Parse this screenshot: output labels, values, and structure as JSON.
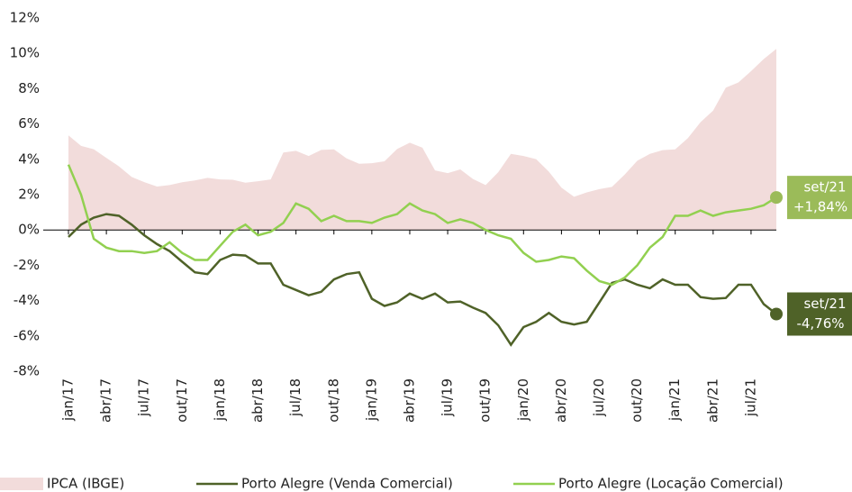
{
  "chart_data": {
    "type": "line",
    "categories": [
      "jan/17",
      null,
      null,
      "abr/17",
      null,
      null,
      "jul/17",
      null,
      null,
      "out/17",
      null,
      null,
      "jan/18",
      null,
      null,
      "abr/18",
      null,
      null,
      "jul/18",
      null,
      null,
      "out/18",
      null,
      null,
      "jan/19",
      null,
      null,
      "abr/19",
      null,
      null,
      "jul/19",
      null,
      null,
      "out/19",
      null,
      null,
      "jan/20",
      null,
      null,
      "abr/20",
      null,
      null,
      "jul/20",
      null,
      null,
      "out/20",
      null,
      null,
      "jan/21",
      null,
      null,
      "abr/21",
      null,
      null,
      "jul/21",
      null,
      null
    ],
    "series": [
      {
        "name": "IPCA (IBGE)",
        "kind": "area",
        "color": "#f2dcdb",
        "values": [
          5.35,
          4.76,
          4.57,
          4.08,
          3.6,
          3.0,
          2.71,
          2.46,
          2.54,
          2.7,
          2.8,
          2.95,
          2.86,
          2.84,
          2.68,
          2.76,
          2.86,
          4.39,
          4.48,
          4.19,
          4.53,
          4.56,
          4.05,
          3.75,
          3.78,
          3.89,
          4.58,
          4.94,
          4.66,
          3.37,
          3.22,
          3.43,
          2.89,
          2.54,
          3.27,
          4.31,
          4.19,
          4.01,
          3.3,
          2.4,
          1.88,
          2.13,
          2.31,
          2.44,
          3.14,
          3.92,
          4.31,
          4.52,
          4.56,
          5.2,
          6.1,
          6.76,
          8.06,
          8.35,
          8.99,
          9.68,
          10.25
        ]
      },
      {
        "name": "Porto Alegre (Venda Comercial)",
        "kind": "line",
        "color": "#4f6228",
        "values": [
          -0.4,
          0.3,
          0.7,
          0.9,
          0.8,
          0.3,
          -0.3,
          -0.8,
          -1.2,
          -1.8,
          -2.4,
          -2.5,
          -1.7,
          -1.4,
          -1.45,
          -1.9,
          -1.9,
          -3.1,
          -3.4,
          -3.7,
          -3.5,
          -2.8,
          -2.5,
          -2.4,
          -3.9,
          -4.3,
          -4.1,
          -3.6,
          -3.9,
          -3.6,
          -4.1,
          -4.05,
          -4.4,
          -4.7,
          -5.4,
          -6.5,
          -5.5,
          -5.2,
          -4.7,
          -5.2,
          -5.35,
          -5.2,
          -4.1,
          -3.0,
          -2.8,
          -3.1,
          -3.3,
          -2.8,
          -3.1,
          -3.1,
          -3.8,
          -3.9,
          -3.85,
          -3.1,
          -3.1,
          -4.2,
          -4.76
        ]
      },
      {
        "name": "Porto Alegre (Locação Comercial)",
        "kind": "line",
        "color": "#92d050",
        "values": [
          3.7,
          2.0,
          -0.5,
          -1.0,
          -1.2,
          -1.2,
          -1.3,
          -1.2,
          -0.7,
          -1.3,
          -1.7,
          -1.7,
          -0.9,
          -0.1,
          0.3,
          -0.3,
          -0.1,
          0.4,
          1.5,
          1.2,
          0.5,
          0.8,
          0.5,
          0.5,
          0.4,
          0.7,
          0.9,
          1.5,
          1.1,
          0.9,
          0.4,
          0.6,
          0.4,
          0.0,
          -0.3,
          -0.5,
          -1.3,
          -1.8,
          -1.7,
          -1.5,
          -1.6,
          -2.3,
          -2.9,
          -3.1,
          -2.7,
          -2.0,
          -1.0,
          -0.4,
          0.8,
          0.8,
          1.1,
          0.8,
          1.0,
          1.1,
          1.2,
          1.4,
          1.84
        ]
      }
    ],
    "annotations": [
      {
        "series": 2,
        "date": "set/21",
        "label": "+1,84%",
        "color": "#9bbb59"
      },
      {
        "series": 1,
        "date": "set/21",
        "label": "-4,76%",
        "color": "#4f6228"
      }
    ],
    "ylim": [
      -8,
      12
    ],
    "yticks": [
      {
        "value": -8,
        "label": "-8%"
      },
      {
        "value": -6,
        "label": "-6%"
      },
      {
        "value": -4,
        "label": "-4%"
      },
      {
        "value": -2,
        "label": "-2%"
      },
      {
        "value": 0,
        "label": "0%"
      },
      {
        "value": 2,
        "label": "2%"
      },
      {
        "value": 4,
        "label": "4%"
      },
      {
        "value": 6,
        "label": "6%"
      },
      {
        "value": 8,
        "label": "8%"
      },
      {
        "value": 10,
        "label": "10%"
      },
      {
        "value": 12,
        "label": "12%"
      }
    ],
    "grid": false,
    "legend": "bottom"
  }
}
